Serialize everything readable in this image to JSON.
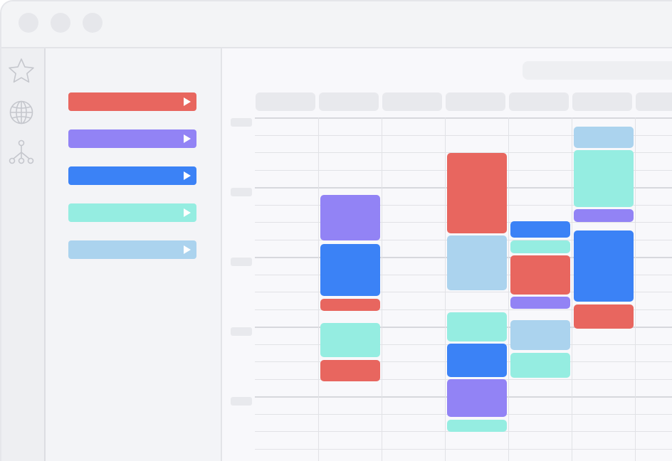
{
  "colors": {
    "red": "#e8665f",
    "purple": "#9283f5",
    "blue": "#3b82f6",
    "mint": "#95ede1",
    "light_blue": "#abd3ee"
  },
  "rail": {
    "icons": [
      "star-icon",
      "globe-icon",
      "org-tree-icon"
    ]
  },
  "calendars": [
    {
      "name": "calendar-item-red",
      "color": "#e8665f"
    },
    {
      "name": "calendar-item-purple",
      "color": "#9283f5"
    },
    {
      "name": "calendar-item-blue",
      "color": "#3b82f6"
    },
    {
      "name": "calendar-item-mint",
      "color": "#95ede1"
    },
    {
      "name": "calendar-item-light-blue",
      "color": "#abd3ee"
    }
  ]
}
